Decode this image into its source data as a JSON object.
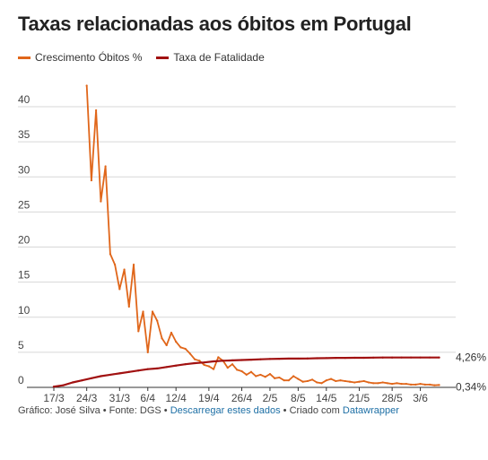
{
  "chart_data": {
    "type": "line",
    "title": "Taxas relacionadas aos óbitos em Portugal",
    "xlabel": "",
    "ylabel": "",
    "ylim": [
      0,
      40
    ],
    "yticks": [
      0,
      5,
      10,
      15,
      20,
      25,
      30,
      35,
      40
    ],
    "xlim": [
      0,
      84
    ],
    "xtick_labels": [
      "17/3",
      "24/3",
      "31/3",
      "6/4",
      "12/4",
      "19/4",
      "26/4",
      "2/5",
      "8/5",
      "14/5",
      "21/5",
      "28/5",
      "3/6"
    ],
    "xtick_positions": [
      0,
      7,
      14,
      20,
      26,
      33,
      40,
      46,
      52,
      58,
      65,
      72,
      78
    ],
    "grid": true,
    "legend_position": "top-left",
    "series": [
      {
        "name": "Crescimento Óbitos %",
        "color": "#e0661a",
        "x": [
          7,
          8,
          9,
          10,
          11,
          12,
          13,
          14,
          15,
          16,
          17,
          18,
          19,
          20,
          21,
          22,
          23,
          24,
          25,
          26,
          27,
          28,
          29,
          30,
          31,
          32,
          33,
          34,
          35,
          36,
          37,
          38,
          39,
          40,
          41,
          42,
          43,
          44,
          45,
          46,
          47,
          48,
          49,
          50,
          51,
          52,
          53,
          54,
          55,
          56,
          57,
          58,
          59,
          60,
          61,
          62,
          63,
          64,
          65,
          66,
          67,
          68,
          69,
          70,
          71,
          72,
          73,
          74,
          75,
          76,
          77,
          78,
          79,
          80,
          81,
          82
        ],
        "values": [
          43.0,
          29.5,
          39.5,
          26.5,
          31.5,
          19.0,
          17.5,
          14.0,
          16.8,
          11.5,
          17.5,
          8.0,
          10.8,
          5.0,
          10.8,
          9.5,
          7.0,
          6.0,
          7.8,
          6.5,
          5.7,
          5.5,
          4.8,
          4.0,
          3.8,
          3.2,
          3.0,
          2.6,
          4.3,
          3.8,
          2.8,
          3.3,
          2.5,
          2.3,
          1.8,
          2.2,
          1.6,
          1.8,
          1.5,
          1.9,
          1.3,
          1.4,
          1.0,
          1.0,
          1.6,
          1.2,
          0.8,
          0.9,
          1.1,
          0.7,
          0.6,
          1.0,
          1.2,
          0.9,
          1.0,
          0.9,
          0.8,
          0.7,
          0.8,
          0.9,
          0.7,
          0.6,
          0.6,
          0.7,
          0.6,
          0.5,
          0.6,
          0.5,
          0.5,
          0.4,
          0.4,
          0.5,
          0.4,
          0.4,
          0.3,
          0.34
        ]
      },
      {
        "name": "Taxa de Fatalidade",
        "color": "#a11111",
        "x": [
          0,
          2,
          4,
          6,
          8,
          10,
          12,
          14,
          16,
          18,
          20,
          22,
          24,
          26,
          28,
          30,
          32,
          34,
          36,
          38,
          40,
          42,
          44,
          46,
          48,
          50,
          52,
          54,
          56,
          58,
          60,
          62,
          64,
          66,
          68,
          70,
          72,
          74,
          76,
          78,
          80,
          82
        ],
        "values": [
          0.1,
          0.3,
          0.7,
          1.0,
          1.3,
          1.6,
          1.8,
          2.0,
          2.2,
          2.4,
          2.6,
          2.7,
          2.9,
          3.1,
          3.3,
          3.45,
          3.55,
          3.7,
          3.8,
          3.85,
          3.9,
          3.95,
          4.0,
          4.05,
          4.08,
          4.1,
          4.1,
          4.12,
          4.15,
          4.17,
          4.2,
          4.2,
          4.22,
          4.22,
          4.24,
          4.25,
          4.25,
          4.26,
          4.26,
          4.26,
          4.26,
          4.26
        ]
      }
    ],
    "end_labels": [
      "4,26%",
      "0,34%"
    ]
  },
  "footer": {
    "prefix": "Gráfico: José Silva • Fonte: DGS • ",
    "download_link": "Descarregar estes dados",
    "middle": " • Criado com ",
    "tool_link": "Datawrapper"
  }
}
